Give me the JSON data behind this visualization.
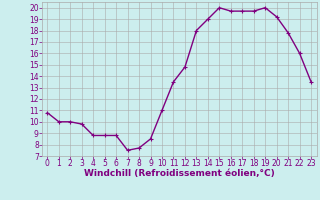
{
  "x": [
    0,
    1,
    2,
    3,
    4,
    5,
    6,
    7,
    8,
    9,
    10,
    11,
    12,
    13,
    14,
    15,
    16,
    17,
    18,
    19,
    20,
    21,
    22,
    23
  ],
  "y": [
    10.8,
    10.0,
    10.0,
    9.8,
    8.8,
    8.8,
    8.8,
    7.5,
    7.7,
    8.5,
    11.0,
    13.5,
    14.8,
    18.0,
    19.0,
    20.0,
    19.7,
    19.7,
    19.7,
    20.0,
    19.2,
    17.8,
    16.0,
    13.5
  ],
  "line_color": "#800080",
  "marker": "+",
  "marker_size": 3,
  "bg_color": "#cceeee",
  "grid_color": "#aaaaaa",
  "xlabel": "Windchill (Refroidissement éolien,°C)",
  "xlim": [
    -0.5,
    23.5
  ],
  "ylim": [
    7,
    20.5
  ],
  "yticks": [
    7,
    8,
    9,
    10,
    11,
    12,
    13,
    14,
    15,
    16,
    17,
    18,
    19,
    20
  ],
  "xticks": [
    0,
    1,
    2,
    3,
    4,
    5,
    6,
    7,
    8,
    9,
    10,
    11,
    12,
    13,
    14,
    15,
    16,
    17,
    18,
    19,
    20,
    21,
    22,
    23
  ],
  "axis_label_color": "#800080",
  "tick_label_color": "#800080",
  "line_width": 1.0,
  "tick_fontsize": 5.5,
  "xlabel_fontsize": 6.5
}
